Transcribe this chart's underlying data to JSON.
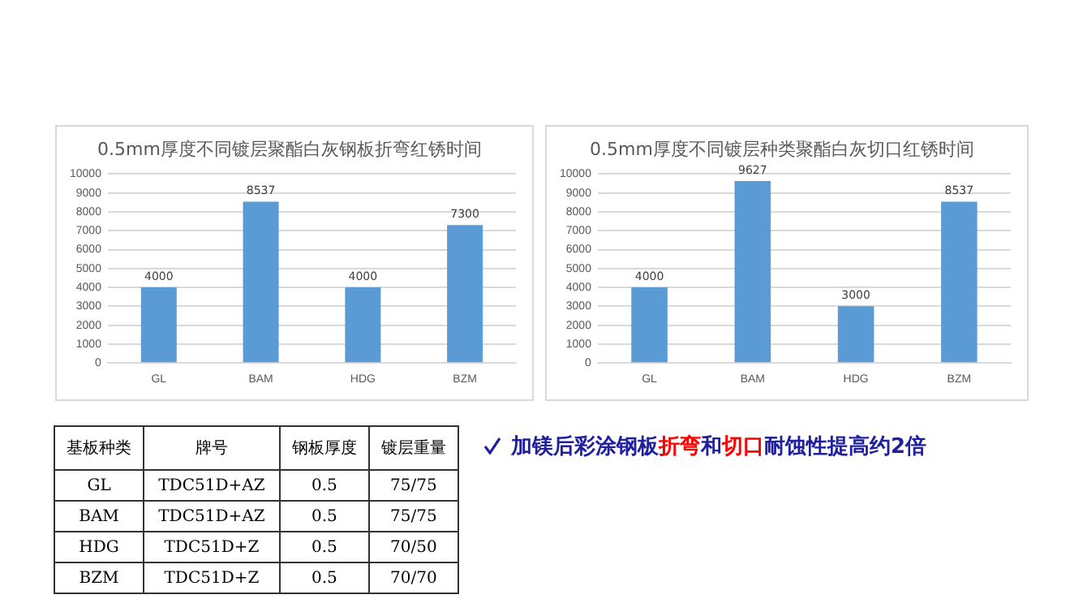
{
  "chart_data": [
    {
      "type": "bar",
      "title": "0.5mm厚度不同镀层聚酯白灰钢板折弯红锈时间",
      "categories": [
        "GL",
        "BAM",
        "HDG",
        "BZM"
      ],
      "values": [
        4000,
        8537,
        4000,
        7300
      ],
      "color": "#5b9bd5",
      "ylim": [
        0,
        10000
      ],
      "yticks": [
        0,
        1000,
        2000,
        3000,
        4000,
        5000,
        6000,
        7000,
        8000,
        9000,
        10000
      ],
      "grid": "y",
      "data_labels": true
    },
    {
      "type": "bar",
      "title": "0.5mm厚度不同镀层种类聚酯白灰切口红锈时间",
      "categories": [
        "GL",
        "BAM",
        "HDG",
        "BZM"
      ],
      "values": [
        4000,
        9627,
        3000,
        8537
      ],
      "color": "#5b9bd5",
      "ylim": [
        0,
        10000
      ],
      "yticks": [
        0,
        1000,
        2000,
        3000,
        4000,
        5000,
        6000,
        7000,
        8000,
        9000,
        10000
      ],
      "grid": "y",
      "data_labels": true
    },
    {
      "type": "other",
      "annotations": [
        "基板种类",
        "牌号",
        "钢板厚度",
        "镀层重量",
        "GL",
        "TDC51D+AZ",
        "0.5",
        "75/75",
        "BAM",
        "TDC51D+AZ",
        "0.5",
        "75/75",
        "HDG",
        "TDC51D+Z",
        "0.5",
        "70/50",
        "BZM",
        "TDC51D+Z",
        "0.5",
        "70/70",
        "加镁后彩涂钢板",
        "折弯",
        "和",
        "切口",
        "耐蚀性提高约2倍"
      ]
    }
  ]
}
